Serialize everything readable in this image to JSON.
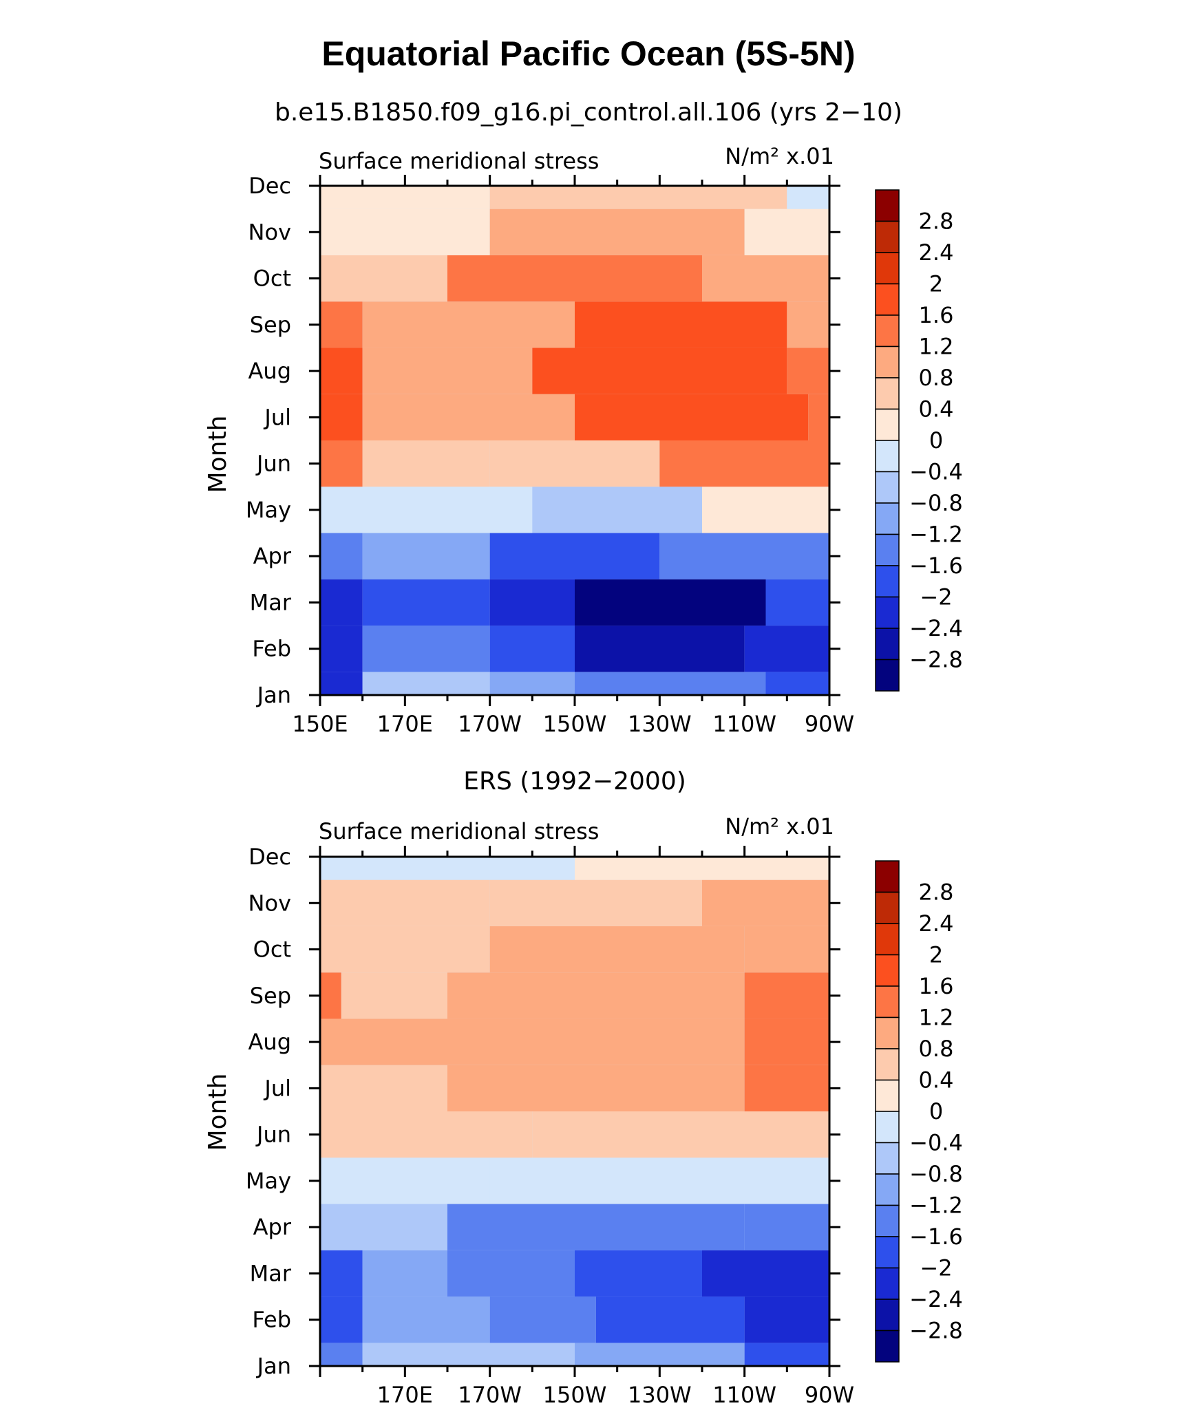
{
  "title": "Equatorial Pacific Ocean (5S-5N)",
  "colorbar": {
    "levels": [
      "2.8",
      "2.4",
      "2",
      "1.6",
      "1.2",
      "0.8",
      "0.4",
      "0",
      "−0.4",
      "−0.8",
      "−1.2",
      "−1.6",
      "−2",
      "−2.4",
      "−2.8"
    ],
    "colors": [
      "#8c0000",
      "#be2a06",
      "#e0380a",
      "#fc501f",
      "#fd7545",
      "#fdaa80",
      "#fdcbae",
      "#fee8d7",
      "#d3e6fb",
      "#aec8f9",
      "#85a8f5",
      "#5a80f0",
      "#2e50ec",
      "#1a2ad2",
      "#0c12a8",
      "#03037e"
    ]
  },
  "chart_data": [
    {
      "type": "heatmap",
      "subtitle": "b.e15.B1850.f09_g16.pi_control.all.106 (yrs 2−10)",
      "left_label": "Surface meridional stress",
      "right_label": "N/m² x.01",
      "ylabel": "Month",
      "y_ticks": [
        "Jan",
        "Feb",
        "Mar",
        "Apr",
        "May",
        "Jun",
        "Jul",
        "Aug",
        "Sep",
        "Oct",
        "Nov",
        "Dec"
      ],
      "x_ticks": [
        "150E",
        "170E",
        "170W",
        "150W",
        "130W",
        "110W",
        "90W"
      ],
      "x_range": [
        150,
        270
      ],
      "cells": [
        {
          "m": 1,
          "a": [
            150,
            160
          ],
          "v": -2.2
        },
        {
          "m": 1,
          "a": [
            160,
            190
          ],
          "v": -0.8
        },
        {
          "m": 1,
          "a": [
            190,
            210
          ],
          "v": -1.0
        },
        {
          "m": 1,
          "a": [
            210,
            255
          ],
          "v": -1.4
        },
        {
          "m": 1,
          "a": [
            255,
            270
          ],
          "v": -2.0
        },
        {
          "m": 2,
          "a": [
            150,
            160
          ],
          "v": -2.4
        },
        {
          "m": 2,
          "a": [
            160,
            190
          ],
          "v": -1.4
        },
        {
          "m": 2,
          "a": [
            190,
            210
          ],
          "v": -2.0
        },
        {
          "m": 2,
          "a": [
            210,
            250
          ],
          "v": -2.8
        },
        {
          "m": 2,
          "a": [
            250,
            270
          ],
          "v": -2.4
        },
        {
          "m": 3,
          "a": [
            150,
            160
          ],
          "v": -2.2
        },
        {
          "m": 3,
          "a": [
            160,
            190
          ],
          "v": -1.6
        },
        {
          "m": 3,
          "a": [
            190,
            210
          ],
          "v": -2.2
        },
        {
          "m": 3,
          "a": [
            210,
            255
          ],
          "v": -3.0
        },
        {
          "m": 3,
          "a": [
            255,
            270
          ],
          "v": -2.0
        },
        {
          "m": 4,
          "a": [
            150,
            160
          ],
          "v": -1.2
        },
        {
          "m": 4,
          "a": [
            160,
            190
          ],
          "v": -1.0
        },
        {
          "m": 4,
          "a": [
            190,
            230
          ],
          "v": -1.6
        },
        {
          "m": 4,
          "a": [
            230,
            270
          ],
          "v": -1.2
        },
        {
          "m": 5,
          "a": [
            150,
            200
          ],
          "v": -0.4
        },
        {
          "m": 5,
          "a": [
            200,
            240
          ],
          "v": -0.6
        },
        {
          "m": 5,
          "a": [
            240,
            270
          ],
          "v": 0.2
        },
        {
          "m": 6,
          "a": [
            150,
            160
          ],
          "v": 1.4
        },
        {
          "m": 6,
          "a": [
            160,
            190
          ],
          "v": 0.4
        },
        {
          "m": 6,
          "a": [
            190,
            230
          ],
          "v": 0.6
        },
        {
          "m": 6,
          "a": [
            230,
            270
          ],
          "v": 1.2
        },
        {
          "m": 7,
          "a": [
            150,
            160
          ],
          "v": 1.6
        },
        {
          "m": 7,
          "a": [
            160,
            180
          ],
          "v": 0.8
        },
        {
          "m": 7,
          "a": [
            180,
            210
          ],
          "v": 0.8
        },
        {
          "m": 7,
          "a": [
            210,
            265
          ],
          "v": 1.8
        },
        {
          "m": 7,
          "a": [
            265,
            270
          ],
          "v": 1.2
        },
        {
          "m": 8,
          "a": [
            150,
            160
          ],
          "v": 1.8
        },
        {
          "m": 8,
          "a": [
            160,
            200
          ],
          "v": 1.0
        },
        {
          "m": 8,
          "a": [
            200,
            260
          ],
          "v": 1.8
        },
        {
          "m": 8,
          "a": [
            260,
            270
          ],
          "v": 1.2
        },
        {
          "m": 9,
          "a": [
            150,
            160
          ],
          "v": 1.4
        },
        {
          "m": 9,
          "a": [
            160,
            210
          ],
          "v": 1.0
        },
        {
          "m": 9,
          "a": [
            210,
            260
          ],
          "v": 1.6
        },
        {
          "m": 9,
          "a": [
            260,
            270
          ],
          "v": 1.0
        },
        {
          "m": 10,
          "a": [
            150,
            180
          ],
          "v": 0.6
        },
        {
          "m": 10,
          "a": [
            180,
            240
          ],
          "v": 1.2
        },
        {
          "m": 10,
          "a": [
            240,
            270
          ],
          "v": 0.8
        },
        {
          "m": 11,
          "a": [
            150,
            190
          ],
          "v": 0.2
        },
        {
          "m": 11,
          "a": [
            190,
            250
          ],
          "v": 0.8
        },
        {
          "m": 11,
          "a": [
            250,
            270
          ],
          "v": 0.2
        },
        {
          "m": 12,
          "a": [
            150,
            190
          ],
          "v": 0.2
        },
        {
          "m": 12,
          "a": [
            190,
            260
          ],
          "v": 0.6
        },
        {
          "m": 12,
          "a": [
            260,
            270
          ],
          "v": -0.2
        }
      ]
    },
    {
      "type": "heatmap",
      "subtitle": "ERS (1992−2000)",
      "left_label": "Surface meridional stress",
      "right_label": "N/m² x.01",
      "ylabel": "Month",
      "y_ticks": [
        "Jan",
        "Feb",
        "Mar",
        "Apr",
        "May",
        "Jun",
        "Jul",
        "Aug",
        "Sep",
        "Oct",
        "Nov",
        "Dec"
      ],
      "x_ticks": [
        "170E",
        "170W",
        "150W",
        "130W",
        "110W",
        "90W"
      ],
      "x_range": [
        150,
        270
      ],
      "cells": [
        {
          "m": 1,
          "a": [
            150,
            160
          ],
          "v": -1.4
        },
        {
          "m": 1,
          "a": [
            160,
            210
          ],
          "v": -0.8
        },
        {
          "m": 1,
          "a": [
            210,
            250
          ],
          "v": -1.0
        },
        {
          "m": 1,
          "a": [
            250,
            270
          ],
          "v": -1.6
        },
        {
          "m": 2,
          "a": [
            150,
            160
          ],
          "v": -1.8
        },
        {
          "m": 2,
          "a": [
            160,
            190
          ],
          "v": -1.0
        },
        {
          "m": 2,
          "a": [
            190,
            215
          ],
          "v": -1.2
        },
        {
          "m": 2,
          "a": [
            215,
            250
          ],
          "v": -1.6
        },
        {
          "m": 2,
          "a": [
            250,
            270
          ],
          "v": -2.2
        },
        {
          "m": 3,
          "a": [
            150,
            160
          ],
          "v": -1.8
        },
        {
          "m": 3,
          "a": [
            160,
            180
          ],
          "v": -1.0
        },
        {
          "m": 3,
          "a": [
            180,
            210
          ],
          "v": -1.2
        },
        {
          "m": 3,
          "a": [
            210,
            240
          ],
          "v": -1.8
        },
        {
          "m": 3,
          "a": [
            240,
            270
          ],
          "v": -2.4
        },
        {
          "m": 4,
          "a": [
            150,
            180
          ],
          "v": -0.8
        },
        {
          "m": 4,
          "a": [
            180,
            210
          ],
          "v": -1.2
        },
        {
          "m": 4,
          "a": [
            210,
            250
          ],
          "v": -1.4
        },
        {
          "m": 4,
          "a": [
            250,
            270
          ],
          "v": -1.2
        },
        {
          "m": 5,
          "a": [
            150,
            190
          ],
          "v": -0.2
        },
        {
          "m": 5,
          "a": [
            190,
            240
          ],
          "v": -0.4
        },
        {
          "m": 5,
          "a": [
            240,
            270
          ],
          "v": -0.2
        },
        {
          "m": 6,
          "a": [
            150,
            200
          ],
          "v": 0.4
        },
        {
          "m": 6,
          "a": [
            200,
            240
          ],
          "v": 0.4
        },
        {
          "m": 6,
          "a": [
            240,
            270
          ],
          "v": 0.6
        },
        {
          "m": 7,
          "a": [
            150,
            180
          ],
          "v": 0.6
        },
        {
          "m": 7,
          "a": [
            180,
            250
          ],
          "v": 0.8
        },
        {
          "m": 7,
          "a": [
            250,
            270
          ],
          "v": 1.4
        },
        {
          "m": 8,
          "a": [
            150,
            180
          ],
          "v": 0.8
        },
        {
          "m": 8,
          "a": [
            180,
            250
          ],
          "v": 1.0
        },
        {
          "m": 8,
          "a": [
            250,
            270
          ],
          "v": 1.4
        },
        {
          "m": 9,
          "a": [
            150,
            155
          ],
          "v": 1.4
        },
        {
          "m": 9,
          "a": [
            155,
            180
          ],
          "v": 0.6
        },
        {
          "m": 9,
          "a": [
            180,
            250
          ],
          "v": 0.9
        },
        {
          "m": 9,
          "a": [
            250,
            270
          ],
          "v": 1.2
        },
        {
          "m": 10,
          "a": [
            150,
            190
          ],
          "v": 0.6
        },
        {
          "m": 10,
          "a": [
            190,
            250
          ],
          "v": 0.8
        },
        {
          "m": 10,
          "a": [
            250,
            270
          ],
          "v": 1.0
        },
        {
          "m": 11,
          "a": [
            150,
            190
          ],
          "v": 0.4
        },
        {
          "m": 11,
          "a": [
            190,
            240
          ],
          "v": 0.4
        },
        {
          "m": 11,
          "a": [
            240,
            270
          ],
          "v": 0.8
        },
        {
          "m": 12,
          "a": [
            150,
            210
          ],
          "v": -0.2
        },
        {
          "m": 12,
          "a": [
            210,
            270
          ],
          "v": 0.2
        }
      ]
    }
  ]
}
